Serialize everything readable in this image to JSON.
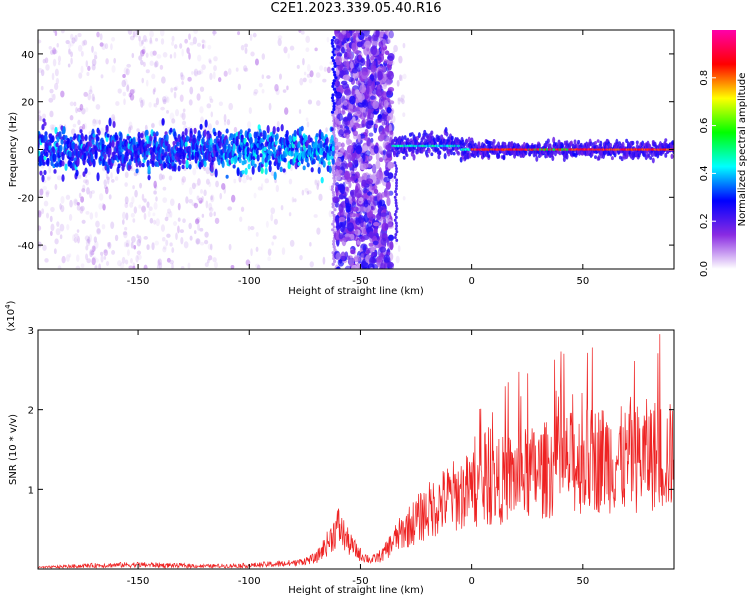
{
  "title": "C2E1.2023.339.05.40.R16",
  "chart_data": [
    {
      "type": "heatmap",
      "xlabel": "Height of straight line (km)",
      "ylabel": "Frequency (Hz)",
      "xlim": [
        -195,
        91
      ],
      "ylim": [
        -50,
        50
      ],
      "xticks": [
        -150,
        -100,
        -50,
        0,
        50
      ],
      "yticks": [
        -40,
        -20,
        0,
        20,
        40
      ],
      "colorbar": {
        "label": "Normalized spectral amplitude",
        "range": [
          0,
          1
        ],
        "ticks": [
          "0.0",
          "0.2",
          "0.4",
          "0.6",
          "0.8"
        ],
        "colors": [
          "#ffffff",
          "#8a2be2",
          "#0000ff",
          "#00ffff",
          "#00ff00",
          "#ffff00",
          "#ff0000",
          "#ff00aa"
        ]
      },
      "features": {
        "main_band_center_hz": 0,
        "noise_column_km": [
          -61,
          -36
        ],
        "strong_line_km": [
          0,
          91
        ]
      }
    },
    {
      "type": "line",
      "xlabel": "Height of straight line (km)",
      "ylabel": "SNR (10 * v/v)",
      "yscale_label": "(x10",
      "yscale_exp": "4",
      "yscale_close": ")",
      "xlim": [
        -195,
        91
      ],
      "ylim": [
        0,
        3
      ],
      "xticks": [
        -150,
        -100,
        -50,
        0,
        50
      ],
      "yticks": [
        1,
        2,
        3
      ],
      "color": "#ee2222",
      "envelope": {
        "x": [
          -195,
          -170,
          -150,
          -120,
          -100,
          -80,
          -70,
          -65,
          -60,
          -55,
          -50,
          -45,
          -40,
          -35,
          -30,
          -20,
          -10,
          0,
          10,
          20,
          30,
          40,
          50,
          60,
          70,
          80,
          91
        ],
        "y": [
          0.02,
          0.05,
          0.06,
          0.04,
          0.05,
          0.08,
          0.15,
          0.35,
          0.6,
          0.35,
          0.2,
          0.12,
          0.2,
          0.4,
          0.55,
          0.8,
          1.0,
          1.1,
          1.2,
          1.3,
          1.35,
          1.45,
          1.5,
          1.55,
          1.5,
          1.6,
          1.55
        ]
      }
    }
  ]
}
